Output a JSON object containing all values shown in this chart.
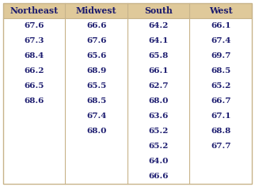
{
  "headers": [
    "Northeast",
    "Midwest",
    "South",
    "West"
  ],
  "columns": {
    "Northeast": [
      67.6,
      67.3,
      68.4,
      66.2,
      66.5,
      68.6,
      null,
      null,
      null,
      null,
      null
    ],
    "Midwest": [
      66.6,
      67.6,
      65.6,
      68.9,
      65.5,
      68.5,
      67.4,
      68.0,
      null,
      null,
      null
    ],
    "South": [
      64.2,
      64.1,
      65.8,
      66.1,
      62.7,
      68.0,
      63.6,
      65.2,
      65.2,
      64.0,
      66.6
    ],
    "West": [
      66.1,
      67.4,
      69.7,
      68.5,
      65.2,
      66.7,
      67.1,
      68.8,
      67.7,
      null,
      null
    ]
  },
  "header_bg": "#dfc99a",
  "row_bg": "#ffffff",
  "header_text_color": "#1a1a6e",
  "data_text_color": "#1a1a6e",
  "border_color": "#c8b48a",
  "num_rows": 11,
  "header_fontsize": 7.8,
  "data_fontsize": 7.5
}
